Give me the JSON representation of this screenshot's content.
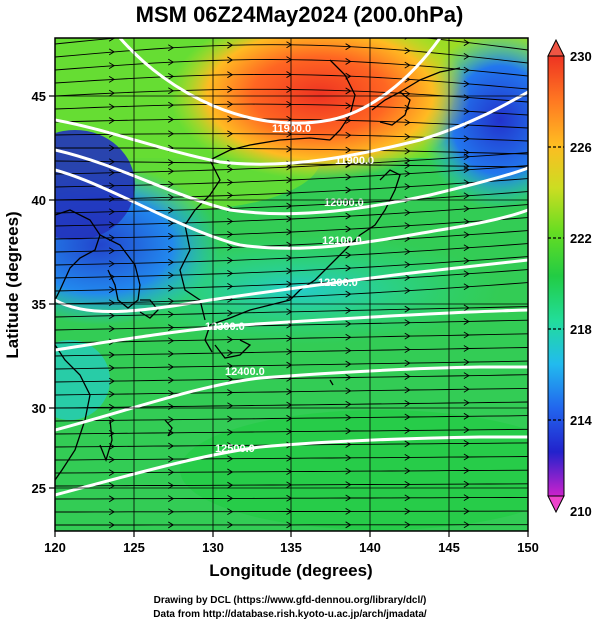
{
  "title": "MSM 06Z24May2024 (200.0hPa)",
  "x_axis": {
    "label": "Longitude (degrees)",
    "range": [
      120,
      150
    ],
    "ticks": [
      "120",
      "125",
      "130",
      "135",
      "140",
      "145",
      "150"
    ]
  },
  "y_axis": {
    "label": "Latitude  (degrees)",
    "range": [
      22.5,
      47.6
    ],
    "ticks": [
      "25",
      "30",
      "35",
      "40",
      "45"
    ]
  },
  "colorbar": {
    "range": [
      210,
      230
    ],
    "tick_labels": [
      "210",
      "214",
      "218",
      "222",
      "226",
      "230"
    ],
    "colors": [
      "#cc22cc",
      "#2222cc",
      "#2266ee",
      "#22bbee",
      "#22dd99",
      "#22cc44",
      "#66dd22",
      "#ccdd22",
      "#ffbb22",
      "#ff7722",
      "#ee3322"
    ]
  },
  "contours": [
    {
      "label": "11900.0"
    },
    {
      "label": "11900.0"
    },
    {
      "label": "12000.0"
    },
    {
      "label": "12100.0"
    },
    {
      "label": "12200.0"
    },
    {
      "label": "12300.0"
    },
    {
      "label": "12400.0"
    },
    {
      "label": "12500.0"
    }
  ],
  "credits": {
    "line1": "Drawing by DCL (https://www.gfd-dennou.org/library/dcl/)",
    "line2": "Data from http://database.rish.kyoto-u.ac.jp/arch/jmadata/"
  }
}
